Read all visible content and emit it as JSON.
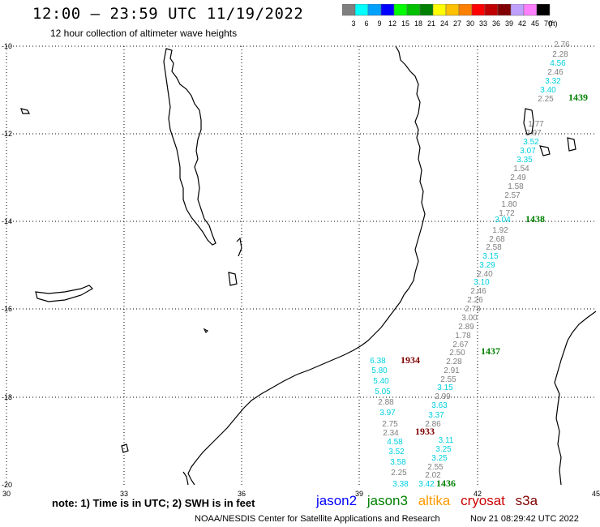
{
  "header": {
    "title": "12:00 – 23:59 UTC 11/19/2022",
    "subtitle": "12 hour collection of altimeter wave heights"
  },
  "color_scale": {
    "labels": [
      "3",
      "6",
      "9",
      "12",
      "15",
      "18",
      "21",
      "24",
      "27",
      "30",
      "33",
      "36",
      "39",
      "42",
      "45",
      "70"
    ],
    "unit": "(ft)",
    "colors": [
      "#7f7f7f",
      "#00ffff",
      "#00a0ff",
      "#0000ff",
      "#00ff00",
      "#00c000",
      "#008000",
      "#ffff00",
      "#ffc000",
      "#ff8000",
      "#ff0000",
      "#c00000",
      "#800000",
      "#c0a0ff",
      "#ff80ff",
      "#000000"
    ]
  },
  "axes": {
    "lon_labels": [
      "30",
      "33",
      "36",
      "39",
      "42",
      "45"
    ],
    "lat_labels": [
      "-10",
      "-12",
      "-14",
      "-16",
      "-18",
      "-20"
    ]
  },
  "passes": [
    {
      "label": "1439",
      "color": "#008000"
    },
    {
      "label": "1438",
      "color": "#008000"
    },
    {
      "label": "1437",
      "color": "#008000"
    },
    {
      "label": "1436",
      "color": "#008000"
    },
    {
      "label": "1934",
      "color": "#800000"
    },
    {
      "label": "1933",
      "color": "#800000"
    }
  ],
  "readings": [
    {
      "v": "2.76",
      "c": "#7f7f7f"
    },
    {
      "v": "2.28",
      "c": "#7f7f7f"
    },
    {
      "v": "4.56",
      "c": "#00d0e0"
    },
    {
      "v": "2.46",
      "c": "#7f7f7f"
    },
    {
      "v": "3.32",
      "c": "#00d0e0"
    },
    {
      "v": "3.40",
      "c": "#00d0e0"
    },
    {
      "v": "2.25",
      "c": "#7f7f7f"
    },
    {
      "v": "1.77",
      "c": "#7f7f7f"
    },
    {
      "v": "2.97",
      "c": "#7f7f7f"
    },
    {
      "v": "3.52",
      "c": "#00d0e0"
    },
    {
      "v": "3.07",
      "c": "#00d0e0"
    },
    {
      "v": "3.35",
      "c": "#00d0e0"
    },
    {
      "v": "1.54",
      "c": "#7f7f7f"
    },
    {
      "v": "2.49",
      "c": "#7f7f7f"
    },
    {
      "v": "1.58",
      "c": "#7f7f7f"
    },
    {
      "v": "2.57",
      "c": "#7f7f7f"
    },
    {
      "v": "1.80",
      "c": "#7f7f7f"
    },
    {
      "v": "1.72",
      "c": "#7f7f7f"
    },
    {
      "v": "3.04",
      "c": "#00d0e0"
    },
    {
      "v": "1.92",
      "c": "#7f7f7f"
    },
    {
      "v": "2.68",
      "c": "#7f7f7f"
    },
    {
      "v": "2.58",
      "c": "#7f7f7f"
    },
    {
      "v": "3.15",
      "c": "#00d0e0"
    },
    {
      "v": "3.29",
      "c": "#00d0e0"
    },
    {
      "v": "2.40",
      "c": "#7f7f7f"
    },
    {
      "v": "3.10",
      "c": "#00d0e0"
    },
    {
      "v": "2.46",
      "c": "#7f7f7f"
    },
    {
      "v": "2.26",
      "c": "#7f7f7f"
    },
    {
      "v": "2.78",
      "c": "#7f7f7f"
    },
    {
      "v": "3.00",
      "c": "#7f7f7f"
    },
    {
      "v": "2.89",
      "c": "#7f7f7f"
    },
    {
      "v": "1.78",
      "c": "#7f7f7f"
    },
    {
      "v": "2.67",
      "c": "#7f7f7f"
    },
    {
      "v": "2.50",
      "c": "#7f7f7f"
    },
    {
      "v": "2.28",
      "c": "#7f7f7f"
    },
    {
      "v": "2.91",
      "c": "#7f7f7f"
    },
    {
      "v": "2.55",
      "c": "#7f7f7f"
    },
    {
      "v": "3.15",
      "c": "#00d0e0"
    },
    {
      "v": "2.99",
      "c": "#7f7f7f"
    },
    {
      "v": "3.63",
      "c": "#00d0e0"
    },
    {
      "v": "3.37",
      "c": "#00d0e0"
    },
    {
      "v": "2.86",
      "c": "#7f7f7f"
    },
    {
      "v": "3.11",
      "c": "#00d0e0"
    },
    {
      "v": "3.25",
      "c": "#00d0e0"
    },
    {
      "v": "3.25",
      "c": "#00d0e0"
    },
    {
      "v": "2.55",
      "c": "#7f7f7f"
    },
    {
      "v": "2.02",
      "c": "#7f7f7f"
    },
    {
      "v": "3.42",
      "c": "#00d0e0"
    },
    {
      "v": "6.38",
      "c": "#00d0e0"
    },
    {
      "v": "5.80",
      "c": "#00d0e0"
    },
    {
      "v": "5.40",
      "c": "#00d0e0"
    },
    {
      "v": "5.05",
      "c": "#00d0e0"
    },
    {
      "v": "2.88",
      "c": "#7f7f7f"
    },
    {
      "v": "3.97",
      "c": "#00d0e0"
    },
    {
      "v": "2.75",
      "c": "#7f7f7f"
    },
    {
      "v": "2.34",
      "c": "#7f7f7f"
    },
    {
      "v": "4.58",
      "c": "#00d0e0"
    },
    {
      "v": "3.52",
      "c": "#00d0e0"
    },
    {
      "v": "3.58",
      "c": "#00d0e0"
    },
    {
      "v": "2.25",
      "c": "#7f7f7f"
    },
    {
      "v": "3.38",
      "c": "#00d0e0"
    }
  ],
  "footer": {
    "note": "note: 1) Time is in UTC; 2) SWH is in feet",
    "satellites": [
      {
        "name": "jason2",
        "color": "#0000ff"
      },
      {
        "name": "jason3",
        "color": "#008000"
      },
      {
        "name": "altika",
        "color": "#ff9900"
      },
      {
        "name": "cryosat",
        "color": "#cc0000"
      },
      {
        "name": "s3a",
        "color": "#800000"
      }
    ],
    "credit": "NOAA/NESDIS Center for Satellite Applications and Research",
    "timestamp": "Nov 21 08:29:42 UTC 2022"
  }
}
